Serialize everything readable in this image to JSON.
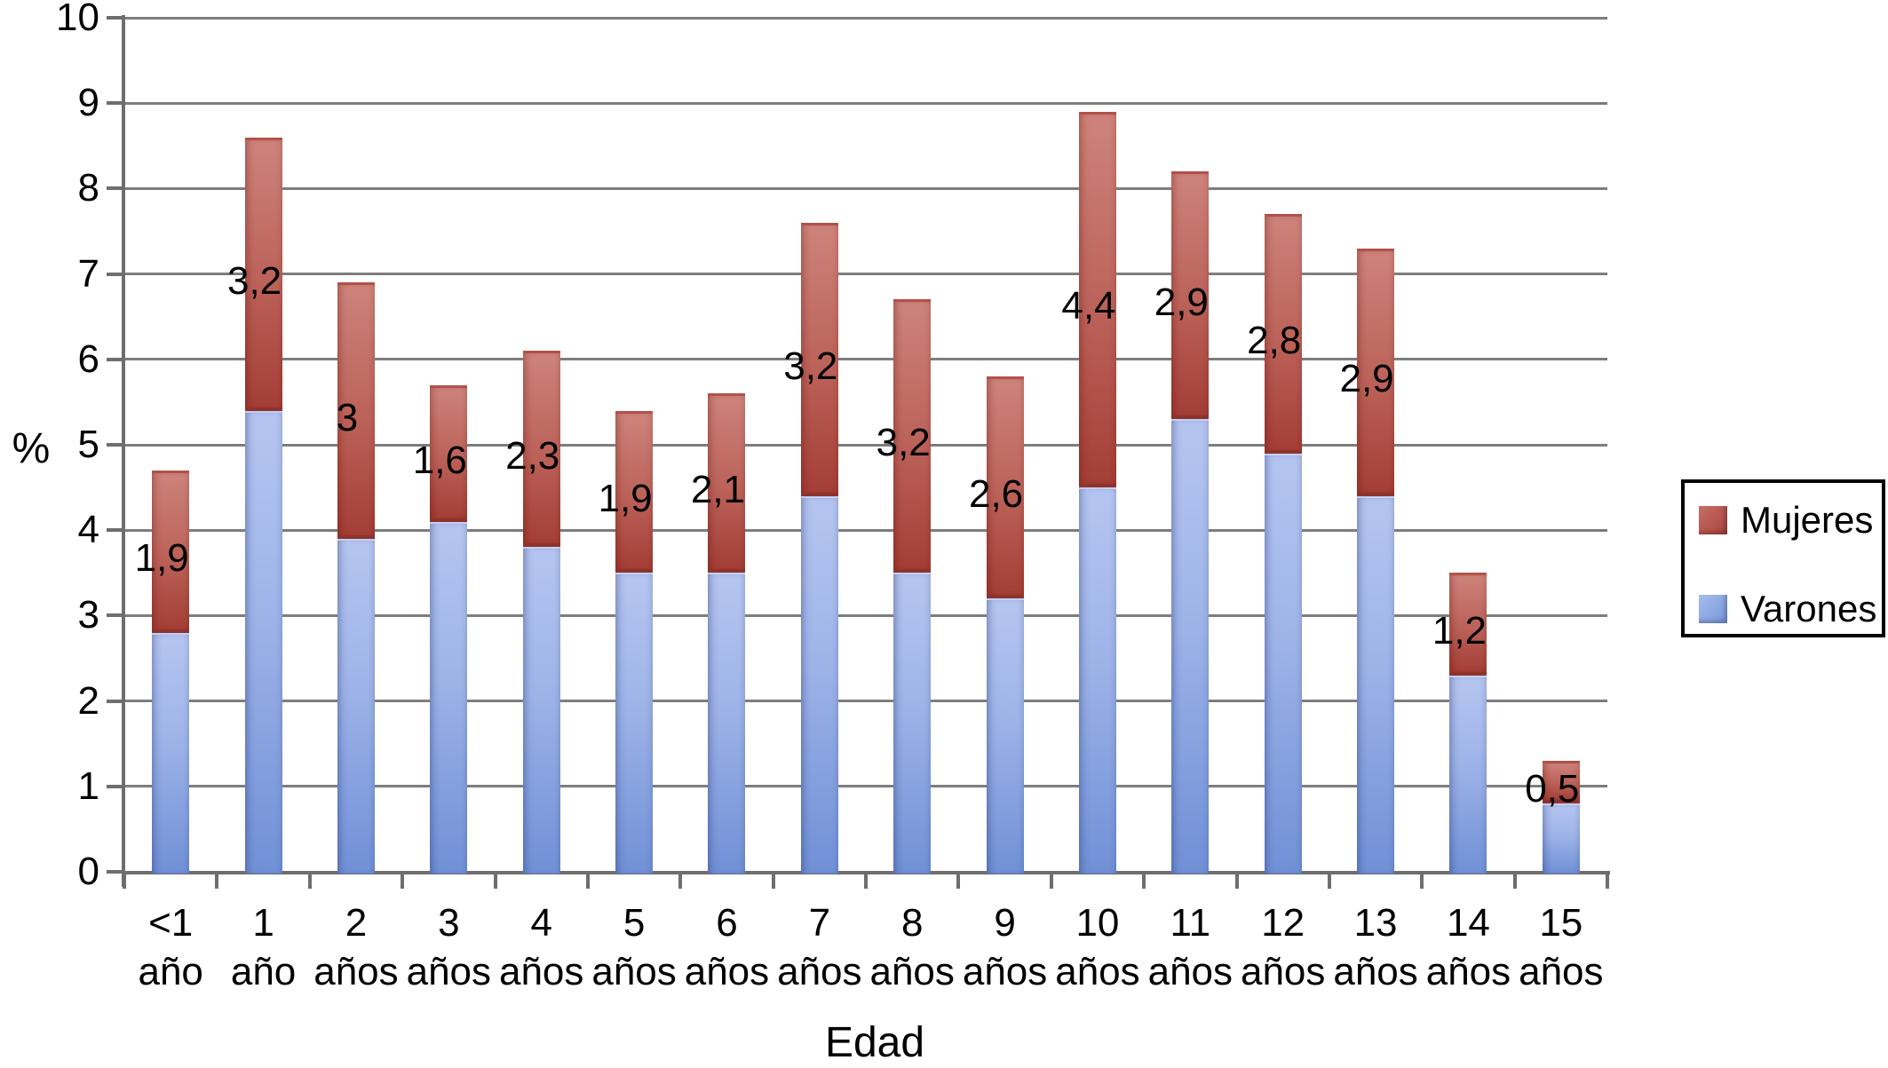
{
  "chart_data": {
    "type": "bar",
    "stacked": true,
    "title": "",
    "xlabel": "Edad",
    "ylabel": "%",
    "ylim": [
      0,
      10
    ],
    "ytick_labels": [
      "0",
      "1",
      "2",
      "3",
      "4",
      "5",
      "6",
      "7",
      "8",
      "9",
      "10"
    ],
    "grid": true,
    "gridline_color": "#7d7d7d",
    "axis_color": "#6e6e6e",
    "categories": [
      {
        "line1": "<1",
        "line2": "año"
      },
      {
        "line1": "1",
        "line2": "año"
      },
      {
        "line1": "2",
        "line2": "años"
      },
      {
        "line1": "3",
        "line2": "años"
      },
      {
        "line1": "4",
        "line2": "años"
      },
      {
        "line1": "5",
        "line2": "años"
      },
      {
        "line1": "6",
        "line2": "años"
      },
      {
        "line1": "7",
        "line2": "años"
      },
      {
        "line1": "8",
        "line2": "años"
      },
      {
        "line1": "9",
        "line2": "años"
      },
      {
        "line1": "10",
        "line2": "años"
      },
      {
        "line1": "11",
        "line2": "años"
      },
      {
        "line1": "12",
        "line2": "años"
      },
      {
        "line1": "13",
        "line2": "años"
      },
      {
        "line1": "14",
        "line2": "años"
      },
      {
        "line1": "15",
        "line2": "años"
      }
    ],
    "series": [
      {
        "name": "Varones",
        "color_top": "#b5c5f0",
        "color_bottom": "#7090d6",
        "values": [
          2.8,
          5.4,
          3.9,
          4.1,
          3.8,
          3.5,
          3.5,
          4.4,
          3.5,
          3.2,
          4.5,
          5.3,
          4.9,
          4.4,
          2.3,
          0.8
        ]
      },
      {
        "name": "Mujeres",
        "color_top": "#cd837b",
        "color_bottom": "#a43e36",
        "values": [
          1.9,
          3.2,
          3.0,
          1.6,
          2.3,
          1.9,
          2.1,
          3.2,
          3.2,
          2.6,
          4.4,
          2.9,
          2.8,
          2.9,
          1.2,
          0.5
        ],
        "labels": [
          "1,9",
          "3,2",
          "3",
          "1,6",
          "2,3",
          "1,9",
          "2,1",
          "3,2",
          "3,2",
          "2,6",
          "4,4",
          "2,9",
          "2,8",
          "2,9",
          "1,2",
          "0,5"
        ]
      }
    ],
    "legend": {
      "position": "right",
      "items": [
        {
          "label": "Mujeres",
          "swatch": "mujeres"
        },
        {
          "label": "Varones",
          "swatch": "varones"
        }
      ]
    }
  }
}
